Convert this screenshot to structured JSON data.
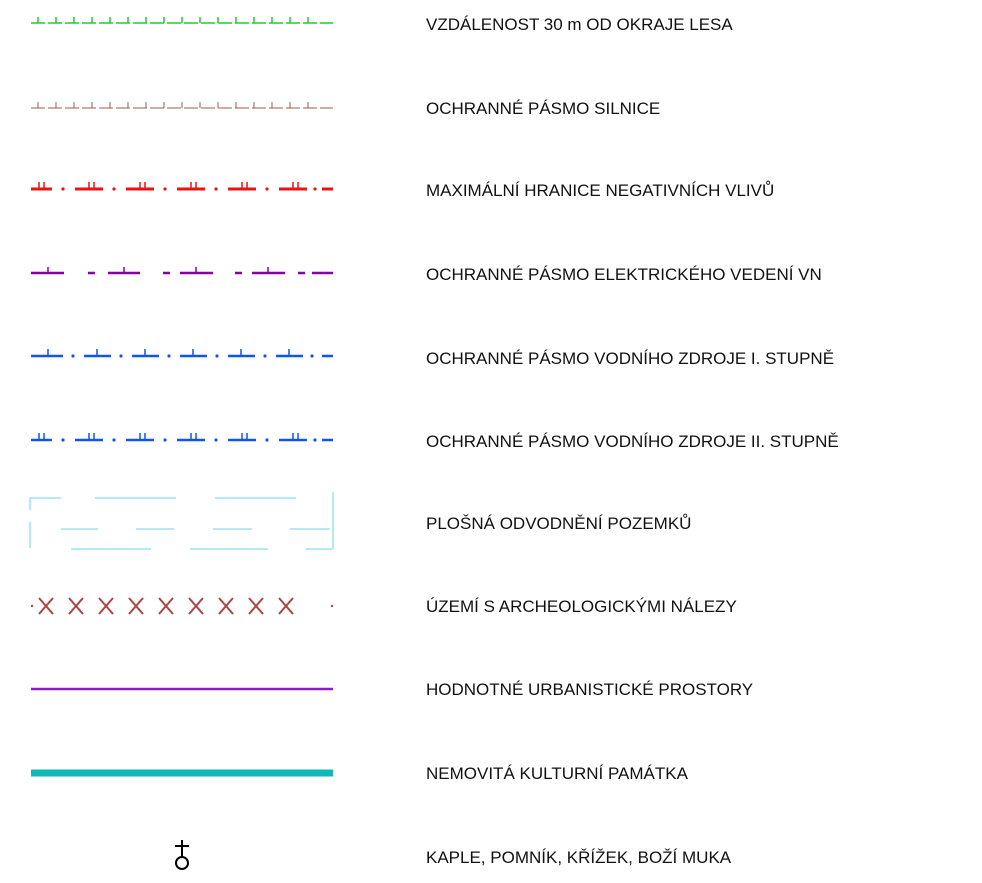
{
  "legend": {
    "items": [
      {
        "id": "forest-distance",
        "symbol": "green-tick-dash-line",
        "label": "VZDÁLENOST 30 m OD OKRAJE LESA",
        "color": "#22cc33"
      },
      {
        "id": "road-protection",
        "symbol": "brown-tick-dash-line",
        "label": "OCHRANNÉ PÁSMO SILNICE",
        "color": "#a05a50"
      },
      {
        "id": "negative-impacts",
        "symbol": "red-double-tick-dash-dot-line",
        "label": "MAXIMÁLNÍ HRANICE NEGATIVNÍCH VLIVŮ",
        "color": "#ee1111"
      },
      {
        "id": "power-line-protection",
        "symbol": "purple-tick-dash-line",
        "label": "OCHRANNÉ PÁSMO ELEKTRICKÉHO VEDENÍ VN",
        "color": "#8800aa"
      },
      {
        "id": "water-source-1",
        "symbol": "blue-tick-dash-dot-line",
        "label": "OCHRANNÉ PÁSMO VODNÍHO ZDROJE I. STUPNĚ",
        "color": "#1155ee"
      },
      {
        "id": "water-source-2",
        "symbol": "blue-double-tick-dash-dot-line",
        "label": "OCHRANNÉ PÁSMO VODNÍHO ZDROJE II. STUPNĚ",
        "color": "#1155ee"
      },
      {
        "id": "drainage",
        "symbol": "light-blue-dash-hatch-area",
        "label": "PLOŠNÁ ODVODNĚNÍ POZEMKŮ",
        "color": "#88ddee"
      },
      {
        "id": "archaeology",
        "symbol": "brown-cross-line",
        "label": "ÚZEMÍ S ARCHEOLOGICKÝMI NÁLEZY",
        "color": "#aa4444"
      },
      {
        "id": "urban-spaces",
        "symbol": "purple-solid-line",
        "label": "HODNOTNÉ URBANISTICKÉ PROSTORY",
        "color": "#8a1ad6"
      },
      {
        "id": "cultural-monument",
        "symbol": "teal-thick-line",
        "label": "NEMOVITÁ KULTURNÍ PAMÁTKA",
        "color": "#12b8b8"
      },
      {
        "id": "chapel",
        "symbol": "cross-circle-icon",
        "label": "KAPLE, POMNÍK, KŘÍŽEK, BOŽÍ MUKA",
        "color": "#000000"
      }
    ]
  }
}
